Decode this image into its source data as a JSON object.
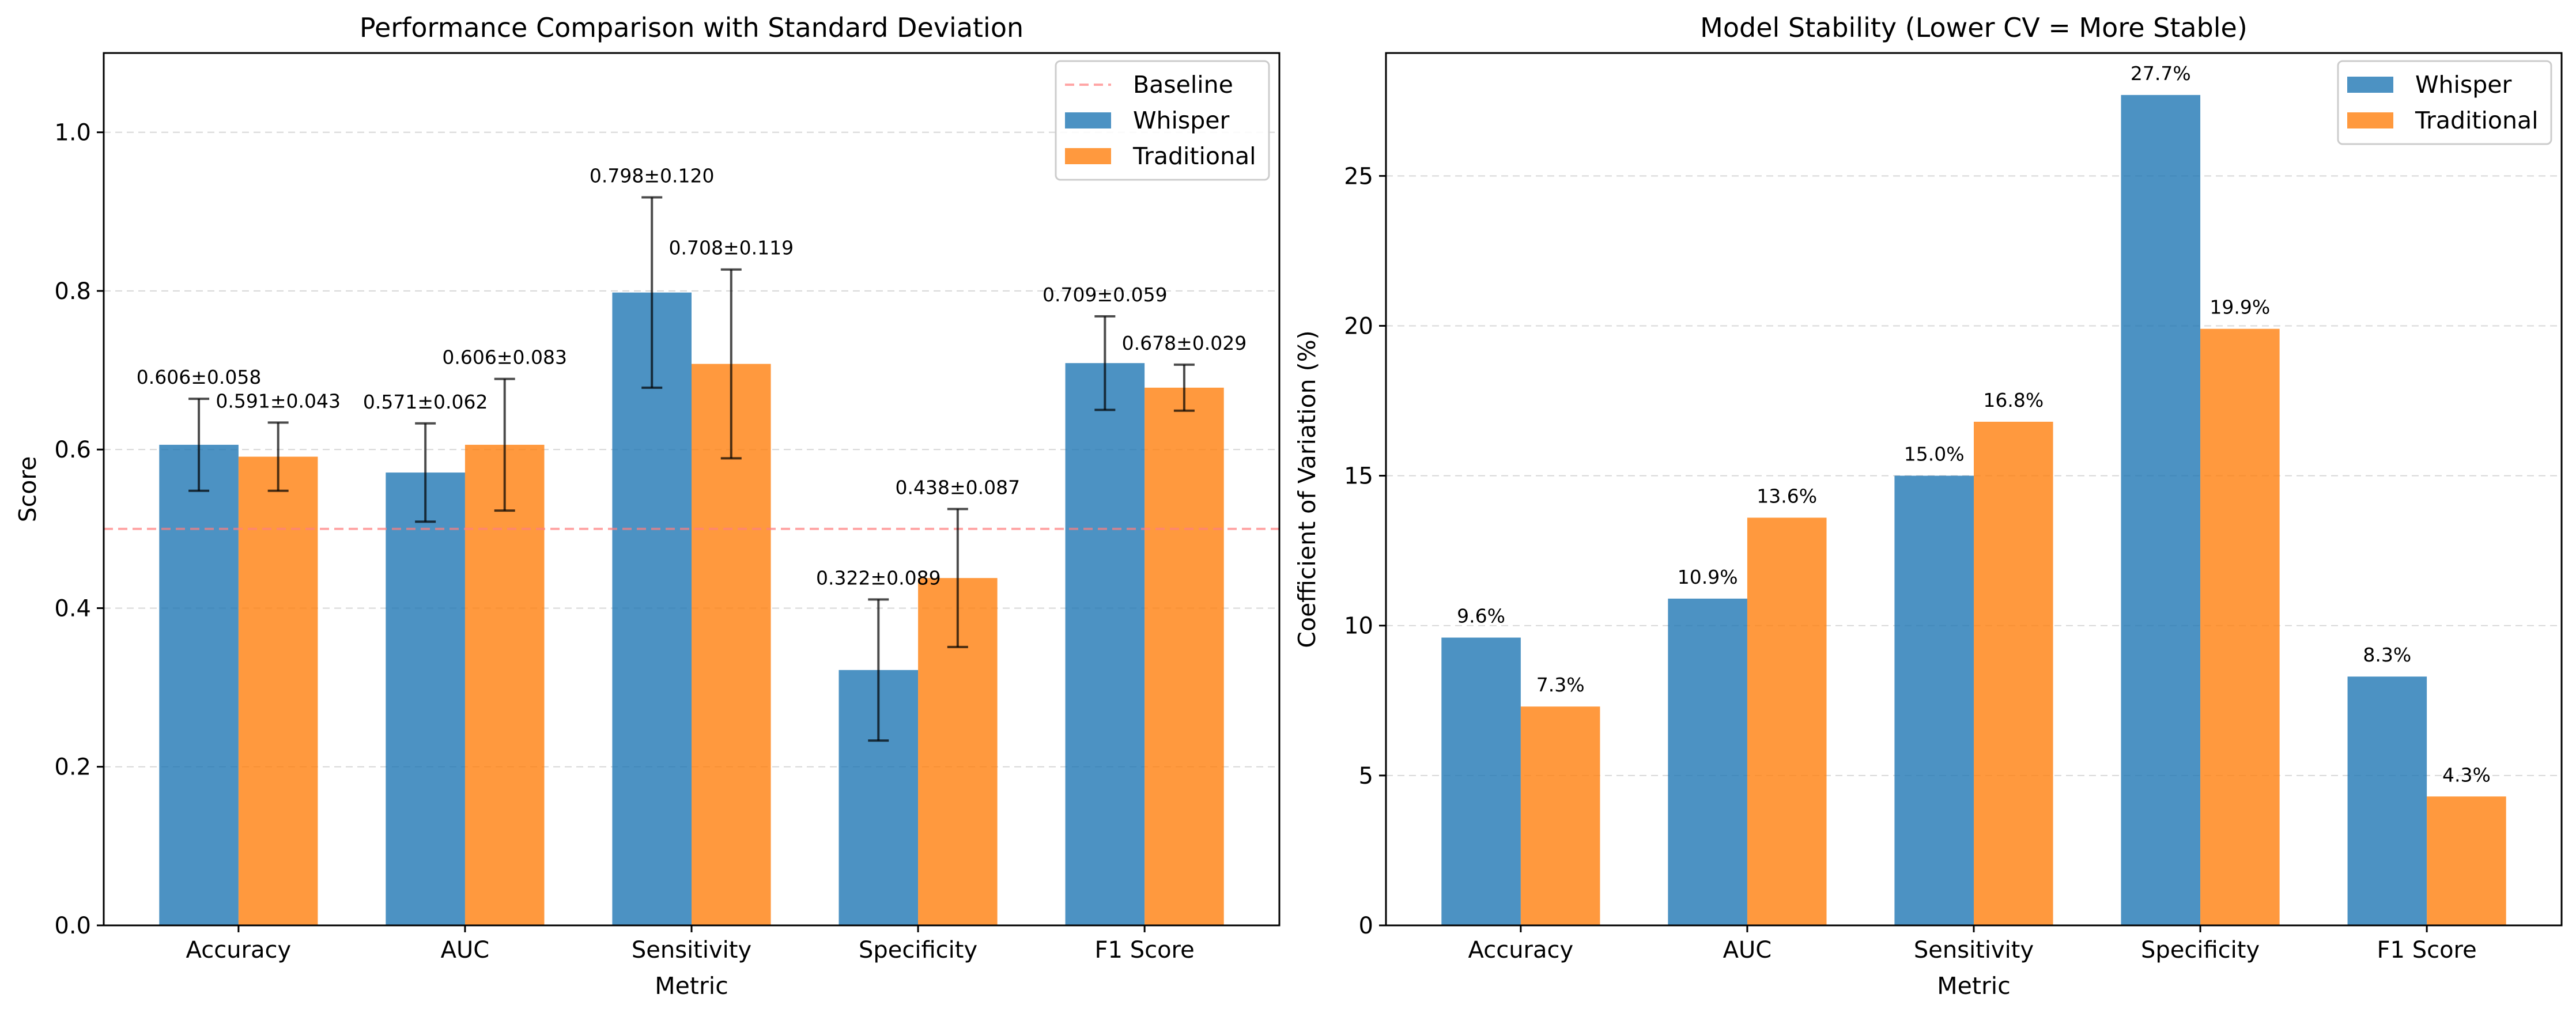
{
  "chart_data": [
    {
      "type": "bar",
      "title": "Performance Comparison with Standard Deviation",
      "xlabel": "Metric",
      "ylabel": "Score",
      "categories": [
        "Accuracy",
        "AUC",
        "Sensitivity",
        "Specificity",
        "F1 Score"
      ],
      "ylim": [
        0,
        1.1
      ],
      "yticks": [
        "0.0",
        "0.2",
        "0.4",
        "0.6",
        "0.8",
        "1.0"
      ],
      "grid": true,
      "legend_position": "top-right",
      "baseline": {
        "name": "Baseline",
        "value": 0.5,
        "color": "#ff7f7f"
      },
      "series": [
        {
          "name": "Whisper",
          "color": "#1f77b4",
          "values": [
            0.606,
            0.571,
            0.798,
            0.322,
            0.709
          ],
          "errors": [
            0.058,
            0.062,
            0.12,
            0.089,
            0.059
          ],
          "labels": [
            "0.606±0.058",
            "0.571±0.062",
            "0.798±0.120",
            "0.322±0.089",
            "0.709±0.059"
          ]
        },
        {
          "name": "Traditional",
          "color": "#ff7f0e",
          "values": [
            0.591,
            0.606,
            0.708,
            0.438,
            0.678
          ],
          "errors": [
            0.043,
            0.083,
            0.119,
            0.087,
            0.029
          ],
          "labels": [
            "0.591±0.043",
            "0.606±0.083",
            "0.708±0.119",
            "0.438±0.087",
            "0.678±0.029"
          ]
        }
      ]
    },
    {
      "type": "bar",
      "title": "Model Stability (Lower CV = More Stable)",
      "xlabel": "Metric",
      "ylabel": "Coefficient of Variation (%)",
      "categories": [
        "Accuracy",
        "AUC",
        "Sensitivity",
        "Specificity",
        "F1 Score"
      ],
      "ylim": [
        0,
        29.1
      ],
      "yticks": [
        "0",
        "5",
        "10",
        "15",
        "20",
        "25"
      ],
      "grid": true,
      "legend_position": "top-right",
      "series": [
        {
          "name": "Whisper",
          "color": "#1f77b4",
          "values": [
            9.6,
            10.9,
            15.0,
            27.7,
            8.3
          ],
          "labels": [
            "9.6%",
            "10.9%",
            "15.0%",
            "27.7%",
            "8.3%"
          ]
        },
        {
          "name": "Traditional",
          "color": "#ff7f0e",
          "values": [
            7.3,
            13.6,
            16.8,
            19.9,
            4.3
          ],
          "labels": [
            "7.3%",
            "13.6%",
            "16.8%",
            "19.9%",
            "4.3%"
          ]
        }
      ]
    }
  ]
}
